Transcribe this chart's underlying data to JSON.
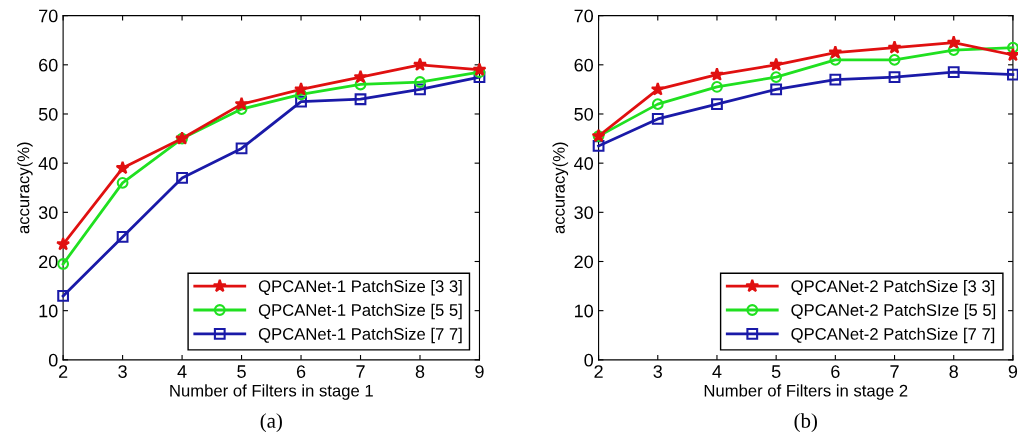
{
  "chart_data": [
    {
      "type": "line",
      "xlabel": "Number of Filters in stage 1",
      "ylabel": "accuracy(%)",
      "annotations": [
        "(a)"
      ],
      "x": [
        2,
        3,
        4,
        5,
        6,
        7,
        8,
        9
      ],
      "xlim": [
        2,
        9
      ],
      "xticks": [
        2,
        3,
        4,
        5,
        6,
        7,
        8,
        9
      ],
      "ylim": [
        0,
        70
      ],
      "yticks": [
        0,
        10,
        20,
        30,
        40,
        50,
        60,
        70
      ],
      "grid": false,
      "legend": "bottom right",
      "series": [
        {
          "name": "QPCANet-1 PatchSize [3 3]",
          "color": "#e01010",
          "marker": "star",
          "values": [
            23.5,
            39,
            45,
            52,
            55,
            57.5,
            60,
            59
          ]
        },
        {
          "name": "QPCANet-1 PatchSize [5 5]",
          "color": "#20e020",
          "marker": "circle",
          "values": [
            19.5,
            36,
            45,
            51,
            54,
            56,
            56.5,
            58.5
          ]
        },
        {
          "name": "QPCANet-1 PatchSize [7 7]",
          "color": "#1a1aa8",
          "marker": "square",
          "values": [
            13,
            25,
            37,
            43,
            52.5,
            53,
            55,
            57.5
          ]
        }
      ]
    },
    {
      "type": "line",
      "xlabel": "Number of Filters in stage 2",
      "ylabel": "accuracy(%)",
      "annotations": [
        "(b)"
      ],
      "x": [
        2,
        3,
        4,
        5,
        6,
        7,
        8,
        9
      ],
      "xlim": [
        2,
        9
      ],
      "xticks": [
        2,
        3,
        4,
        5,
        6,
        7,
        8,
        9
      ],
      "ylim": [
        0,
        70
      ],
      "yticks": [
        0,
        10,
        20,
        30,
        40,
        50,
        60,
        70
      ],
      "grid": false,
      "legend": "bottom right",
      "series": [
        {
          "name": "QPCANet-2 PatchSize [3 3]",
          "color": "#e01010",
          "marker": "star",
          "values": [
            45.5,
            55,
            58,
            60,
            62.5,
            63.5,
            64.5,
            62
          ]
        },
        {
          "name": "QPCANet-2 PatchSIze [5 5]",
          "color": "#20e020",
          "marker": "circle",
          "values": [
            45.5,
            52,
            55.5,
            57.5,
            61,
            61,
            63,
            63.5
          ]
        },
        {
          "name": "QPCANet-2 PatchSize [7 7]",
          "color": "#1a1aa8",
          "marker": "square",
          "values": [
            43.5,
            49,
            52,
            55,
            57,
            57.5,
            58.5,
            58
          ]
        }
      ]
    }
  ]
}
